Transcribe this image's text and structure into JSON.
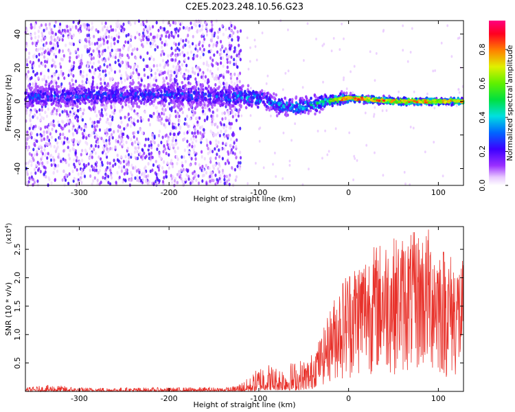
{
  "title": "C2E5.2023.248.10.56.G23",
  "chart_data": [
    {
      "type": "heatmap",
      "xlabel": "Height of straight line (km)",
      "ylabel": "Frequency (Hz)",
      "xlim": [
        -360,
        128
      ],
      "ylim": [
        -50,
        48
      ],
      "x_ticks": [
        -300,
        -200,
        -100,
        0,
        100
      ],
      "y_ticks": [
        -40,
        -20,
        0,
        20,
        40
      ],
      "colorbar": {
        "label": "Normalized spectral amplitude",
        "range": [
          0,
          0.97
        ],
        "ticks": [
          "0.0",
          "0.2",
          "0.4",
          "0.6",
          "0.8"
        ]
      },
      "description_points": [
        {
          "x": -340,
          "y": 3,
          "v": 0.3
        },
        {
          "x": -300,
          "y": 3,
          "v": 0.3
        },
        {
          "x": -250,
          "y": 4,
          "v": 0.3
        },
        {
          "x": -200,
          "y": 4,
          "v": 0.3
        },
        {
          "x": -150,
          "y": 3,
          "v": 0.3
        },
        {
          "x": -100,
          "y": 2,
          "v": 0.4
        },
        {
          "x": -75,
          "y": -3,
          "v": 0.45
        },
        {
          "x": -50,
          "y": -3,
          "v": 0.45
        },
        {
          "x": -25,
          "y": 0,
          "v": 0.55
        },
        {
          "x": 0,
          "y": 2,
          "v": 0.6
        },
        {
          "x": 25,
          "y": 1,
          "v": 0.7
        },
        {
          "x": 50,
          "y": 0,
          "v": 0.75
        },
        {
          "x": 75,
          "y": 0,
          "v": 0.75
        },
        {
          "x": 100,
          "y": 0,
          "v": 0.7
        },
        {
          "x": 125,
          "y": 0,
          "v": 0.7
        }
      ]
    },
    {
      "type": "line",
      "xlabel": "Height of straight line (km)",
      "ylabel": "SNR (10 * v/v)",
      "y_multiplier": "(x10",
      "y_multiplier_exp": "4",
      "y_multiplier_close": ")",
      "xlim": [
        -360,
        128
      ],
      "ylim": [
        0,
        2.9
      ],
      "x_ticks": [
        -300,
        -200,
        -100,
        0,
        100
      ],
      "y_ticks": [
        "0.5",
        "1.0",
        "1.5",
        "2.0",
        "2.5"
      ],
      "color": "#e8312a",
      "envelope": [
        {
          "x": -360,
          "lo": 0.0,
          "hi": 0.07
        },
        {
          "x": -330,
          "lo": 0.0,
          "hi": 0.12
        },
        {
          "x": -300,
          "lo": 0.0,
          "hi": 0.07
        },
        {
          "x": -200,
          "lo": 0.0,
          "hi": 0.07
        },
        {
          "x": -130,
          "lo": 0.0,
          "hi": 0.08
        },
        {
          "x": -110,
          "lo": 0.0,
          "hi": 0.25
        },
        {
          "x": -95,
          "lo": 0.02,
          "hi": 0.55
        },
        {
          "x": -80,
          "lo": 0.02,
          "hi": 0.45
        },
        {
          "x": -60,
          "lo": 0.02,
          "hi": 0.55
        },
        {
          "x": -50,
          "lo": 0.03,
          "hi": 0.6
        },
        {
          "x": -40,
          "lo": 0.05,
          "hi": 0.7
        },
        {
          "x": -30,
          "lo": 0.1,
          "hi": 1.0
        },
        {
          "x": -20,
          "lo": 0.15,
          "hi": 1.5
        },
        {
          "x": -10,
          "lo": 0.2,
          "hi": 1.9
        },
        {
          "x": 0,
          "lo": 0.2,
          "hi": 2.2
        },
        {
          "x": 20,
          "lo": 0.3,
          "hi": 2.5
        },
        {
          "x": 40,
          "lo": 0.3,
          "hi": 2.7
        },
        {
          "x": 60,
          "lo": 0.3,
          "hi": 2.75
        },
        {
          "x": 90,
          "lo": 0.3,
          "hi": 2.9
        },
        {
          "x": 110,
          "lo": 0.2,
          "hi": 2.5
        },
        {
          "x": 128,
          "lo": 0.2,
          "hi": 2.3
        }
      ]
    }
  ]
}
